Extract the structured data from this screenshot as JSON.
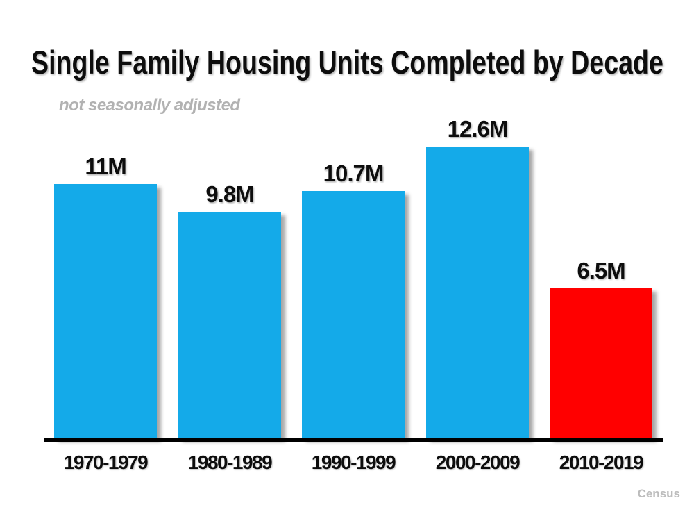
{
  "chart_data": {
    "type": "bar",
    "title": "Single Family Housing Units Completed by Decade",
    "subtitle": "not seasonally adjusted",
    "categories": [
      "1970-1979",
      "1980-1989",
      "1990-1999",
      "2000-2009",
      "2010-2019"
    ],
    "values": [
      11,
      9.8,
      10.7,
      12.6,
      6.5
    ],
    "value_labels": [
      "11M",
      "9.8M",
      "10.7M",
      "12.6M",
      "6.5M"
    ],
    "bar_colors": [
      "#14AAE9",
      "#14AAE9",
      "#14AAE9",
      "#14AAE9",
      "#FF0000"
    ],
    "highlight_color": "#FF0000",
    "default_color": "#14AAE9",
    "axis_color": "#000000",
    "source": "Census",
    "ylabel": "",
    "xlabel": "",
    "ylim": [
      0,
      13.5
    ],
    "grid": false,
    "legend": "none",
    "value_axis_visible": false
  }
}
